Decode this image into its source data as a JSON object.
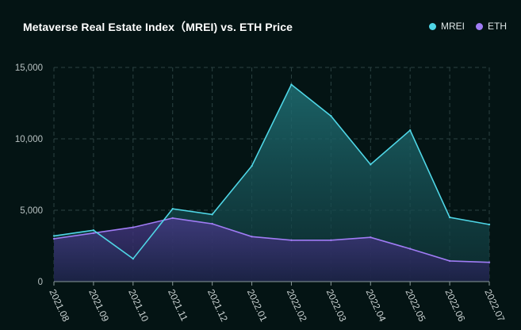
{
  "chart_data": {
    "type": "area",
    "title": "Metaverse Real Estate Index（MREI) vs. ETH Price",
    "xlabel": "",
    "ylabel": "",
    "categories": [
      "2021.08",
      "2021.09",
      "2021.10",
      "2021.11",
      "2021.12",
      "2022.01",
      "2022.02",
      "2022.03",
      "2022.04",
      "2022.05",
      "2022.06",
      "2022.07"
    ],
    "series": [
      {
        "name": "MREI",
        "color": "#4fd6e6",
        "values": [
          3200,
          3600,
          1600,
          5100,
          4700,
          8100,
          13800,
          11600,
          8200,
          10600,
          4500,
          4000
        ]
      },
      {
        "name": "ETH",
        "color": "#a07cf5",
        "values": [
          3000,
          3400,
          3800,
          4450,
          4050,
          3150,
          2900,
          2900,
          3100,
          2300,
          1450,
          1350
        ]
      }
    ],
    "ylim": [
      0,
      15000
    ],
    "yticks": [
      "0",
      "5,000",
      "10,000",
      "15,000"
    ],
    "grid": true,
    "legend_position": "top-right"
  }
}
